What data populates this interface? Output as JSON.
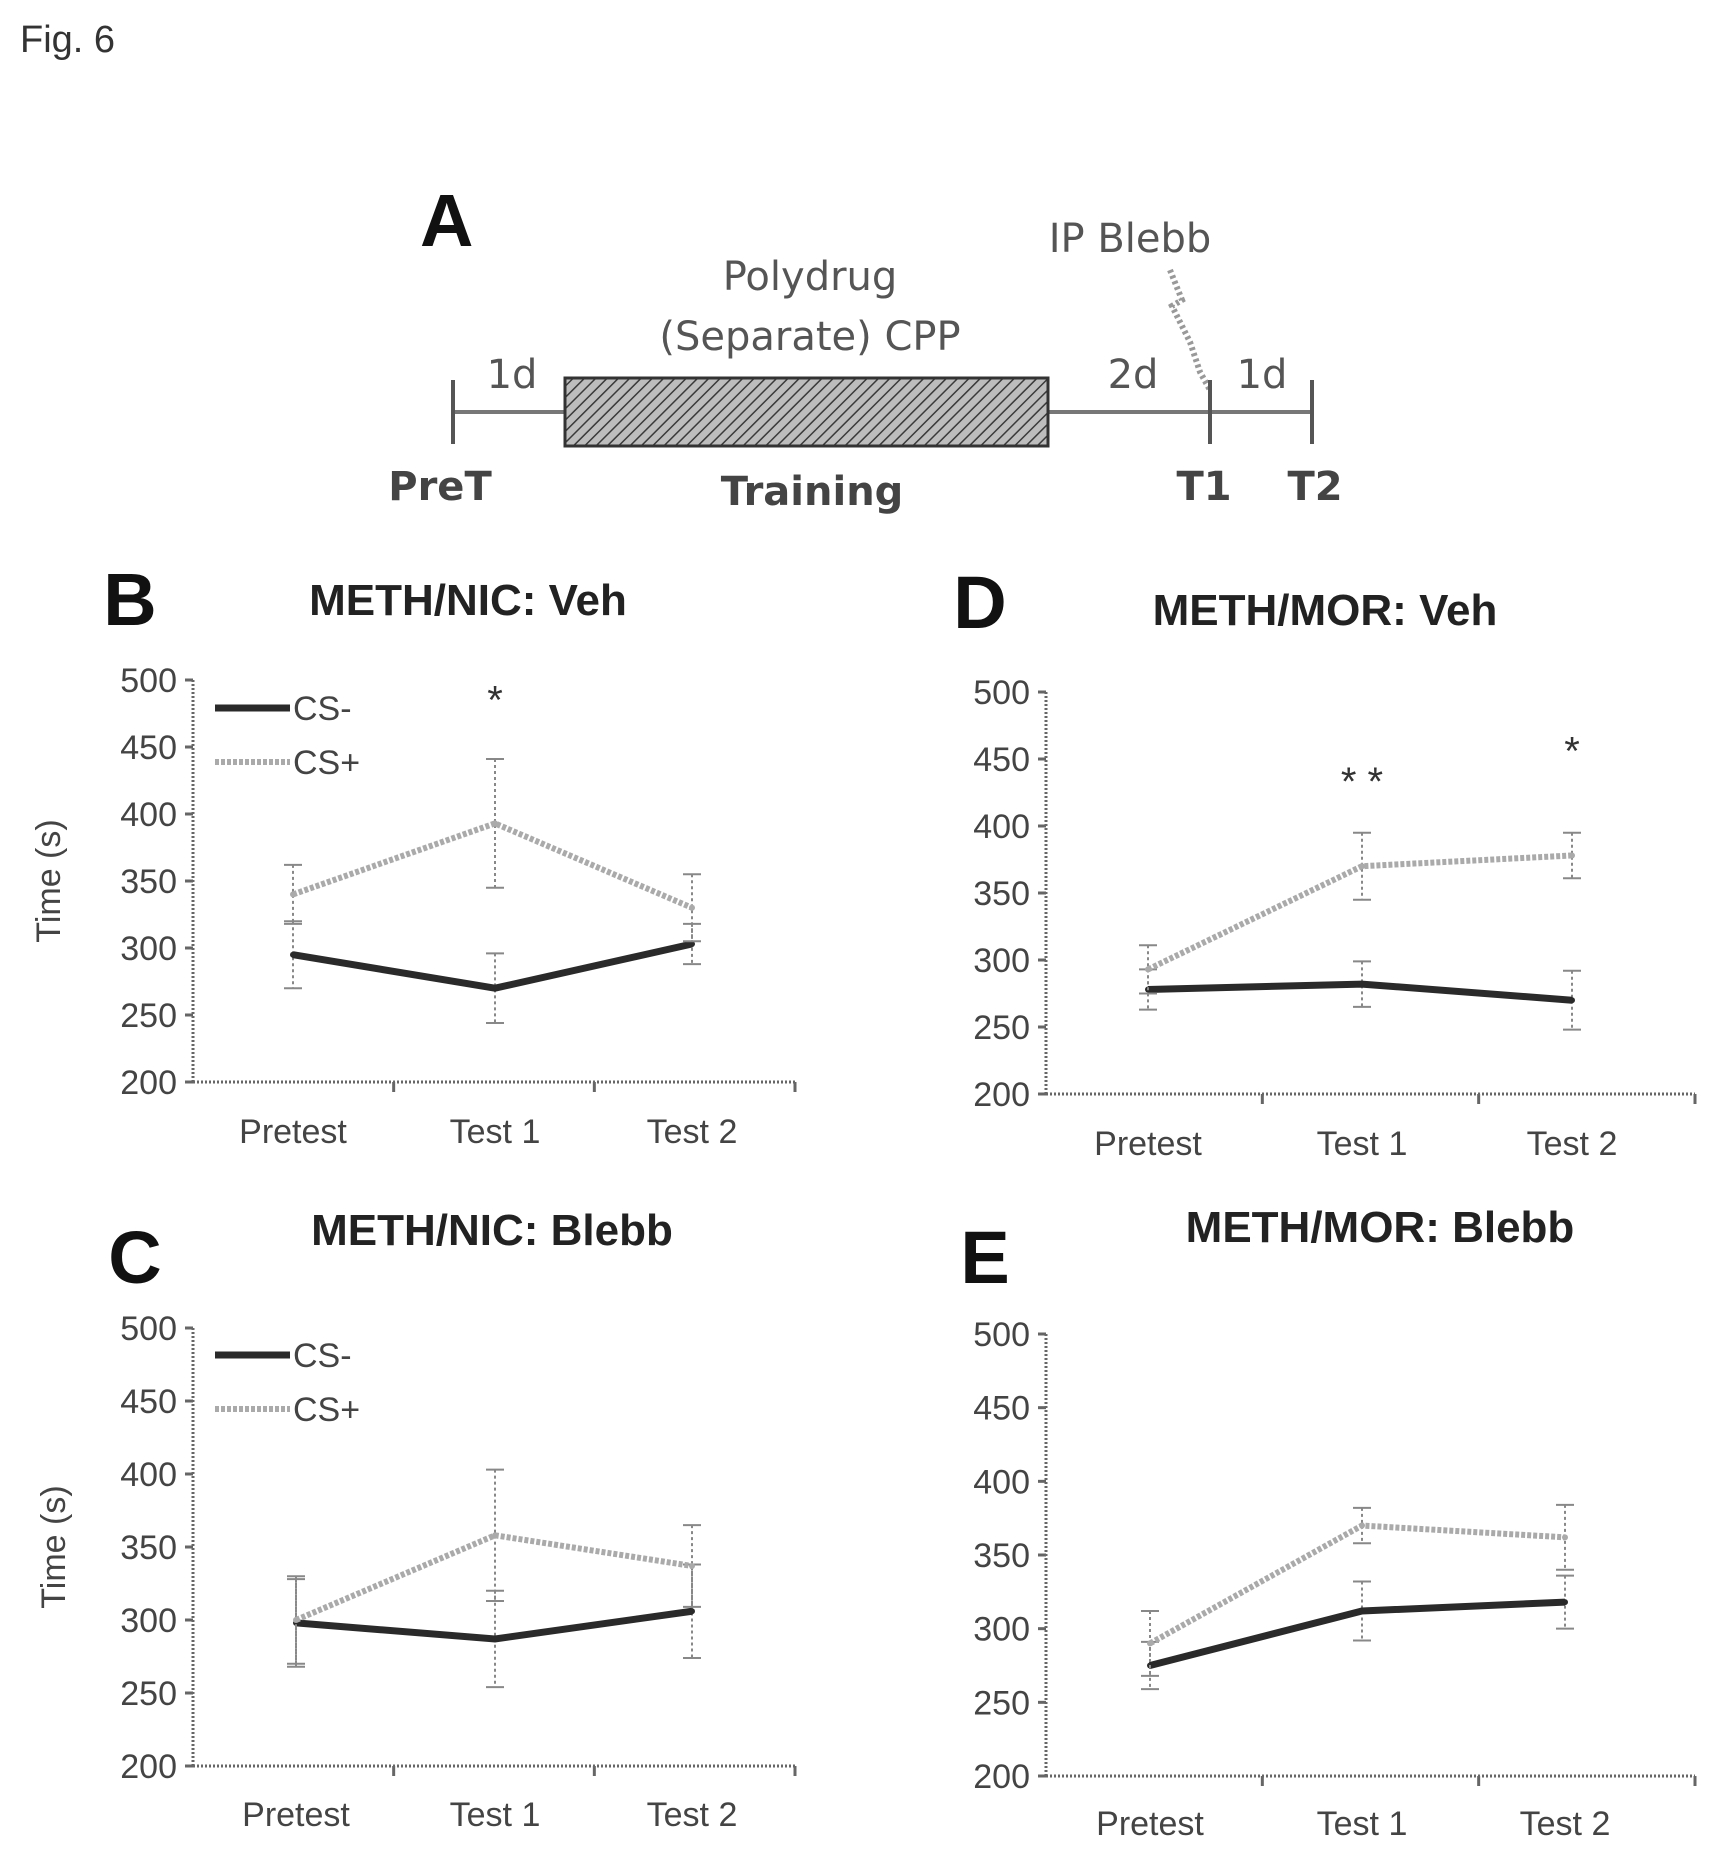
{
  "figure_label": "Fig. 6",
  "diagram": {
    "letter": "A",
    "title_line1": "Polydrug",
    "title_line2": "(Separate) CPP",
    "injection": "IP Blebb",
    "intervals": [
      "1d",
      "2d",
      "1d"
    ],
    "milestones": [
      "PreT",
      "Training",
      "T1",
      "T2"
    ]
  },
  "chart_data": [
    {
      "letter": "B",
      "type": "line",
      "title": "METH/NIC: Veh",
      "ylabel": "Time (s)",
      "xlabel": "",
      "categories": [
        "Pretest",
        "Test 1",
        "Test 2"
      ],
      "ylim": [
        200,
        500
      ],
      "yticks": [
        "200",
        "250",
        "300",
        "350",
        "400",
        "450",
        "500"
      ],
      "legend": "top-left",
      "series": [
        {
          "name": "CS-",
          "color": "#2a2a2a",
          "values": [
            295,
            270,
            303
          ],
          "errors": [
            25,
            26,
            15
          ]
        },
        {
          "name": "CS+",
          "color": "#aaaaaa",
          "values": [
            340,
            393,
            330
          ],
          "errors": [
            22,
            48,
            25
          ]
        }
      ],
      "annotations": [
        {
          "category": "Test 1",
          "value": 475,
          "text": "*"
        }
      ]
    },
    {
      "letter": "D",
      "type": "line",
      "title": "METH/MOR: Veh",
      "ylabel": "",
      "xlabel": "",
      "categories": [
        "Pretest",
        "Test 1",
        "Test 2"
      ],
      "ylim": [
        200,
        500
      ],
      "yticks": [
        "200",
        "250",
        "300",
        "350",
        "400",
        "450",
        "500"
      ],
      "legend": "none",
      "series": [
        {
          "name": "",
          "color": "#2a2a2a",
          "values": [
            278,
            282,
            270
          ],
          "errors": [
            15,
            17,
            22
          ]
        },
        {
          "name": "",
          "color": "#aaaaaa",
          "values": [
            293,
            370,
            378
          ],
          "errors": [
            18,
            25,
            17
          ]
        }
      ],
      "annotations": [
        {
          "category": "Test 1",
          "value": 423,
          "text": "* *"
        },
        {
          "category": "Test 2",
          "value": 446,
          "text": "*"
        }
      ]
    },
    {
      "letter": "C",
      "type": "line",
      "title": "METH/NIC: Blebb",
      "ylabel": "Time (s)",
      "xlabel": "",
      "categories": [
        "Pretest",
        "Test 1",
        "Test 2"
      ],
      "ylim": [
        200,
        500
      ],
      "yticks": [
        "200",
        "250",
        "300",
        "350",
        "400",
        "450",
        "500"
      ],
      "legend": "top-left",
      "series": [
        {
          "name": "CS-",
          "color": "#2a2a2a",
          "values": [
            298,
            287,
            306
          ],
          "errors": [
            30,
            33,
            32
          ]
        },
        {
          "name": "CS+",
          "color": "#aaaaaa",
          "values": [
            300,
            358,
            337
          ],
          "errors": [
            30,
            45,
            28
          ]
        }
      ],
      "annotations": []
    },
    {
      "letter": "E",
      "type": "line",
      "title": "METH/MOR: Blebb",
      "ylabel": "",
      "xlabel": "",
      "categories": [
        "Pretest",
        "Test 1",
        "Test 2"
      ],
      "ylim": [
        200,
        500
      ],
      "yticks": [
        "200",
        "250",
        "300",
        "350",
        "400",
        "450",
        "500"
      ],
      "legend": "none",
      "series": [
        {
          "name": "",
          "color": "#2a2a2a",
          "values": [
            275,
            312,
            318
          ],
          "errors": [
            16,
            20,
            18
          ]
        },
        {
          "name": "",
          "color": "#aaaaaa",
          "values": [
            290,
            370,
            362
          ],
          "errors": [
            22,
            12,
            22
          ]
        }
      ],
      "annotations": []
    }
  ]
}
